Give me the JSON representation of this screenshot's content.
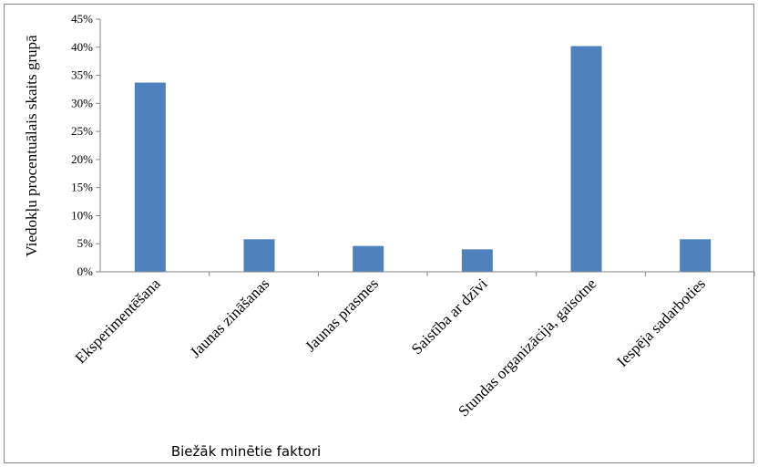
{
  "chart_data": {
    "type": "bar",
    "title": "",
    "xlabel": "Biežāk minētie faktori",
    "ylabel": "Viedokļu procentuālais skaits grupā",
    "categories": [
      "Eksperimentēšana",
      "Jaunas zināšanas",
      "Jaunas prasmes",
      "Saistība ar dzīvi",
      "Stundas organizācija, gaisotne",
      "Iespēja sadarboties"
    ],
    "values": [
      33.7,
      5.8,
      4.6,
      4.0,
      40.2,
      5.8
    ],
    "ylim": [
      0,
      45
    ],
    "yticks": [
      "0%",
      "5%",
      "10%",
      "15%",
      "20%",
      "25%",
      "30%",
      "35%",
      "40%",
      "45%"
    ],
    "ytick_values": [
      0,
      5,
      10,
      15,
      20,
      25,
      30,
      35,
      40,
      45
    ],
    "bar_color": "#4f81bd",
    "grid": false,
    "legend": "none"
  }
}
